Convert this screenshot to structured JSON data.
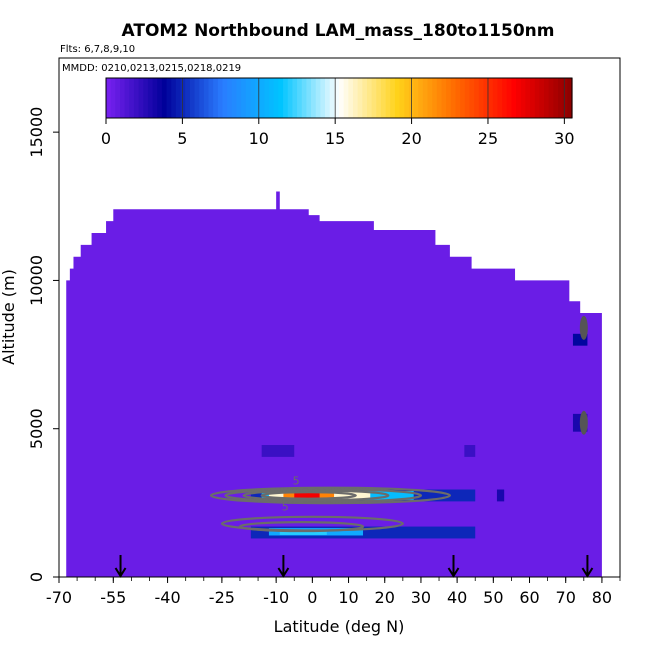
{
  "chart_data": {
    "type": "heatmap",
    "title": "ATOM2 Northbound LAM_mass_180to1150nm",
    "flights_note": "Flts: 6,7,8,9,10",
    "dates_note": "MMDD: 0210,0213,0215,0218,0219",
    "xlabel": "Latitude (deg N)",
    "ylabel": "Altitude (m)",
    "xlim": [
      -70,
      85
    ],
    "ylim": [
      0,
      17500
    ],
    "xticks": [
      -70,
      -55,
      -40,
      -25,
      -10,
      0,
      10,
      20,
      30,
      40,
      50,
      60,
      70,
      80
    ],
    "yticks": [
      0,
      5000,
      10000,
      15000
    ],
    "colorbar": {
      "min": 0,
      "max": 30.5,
      "ticks": [
        0,
        5,
        10,
        15,
        20,
        25,
        30
      ],
      "stops": [
        "#7a21f2",
        "#00009a",
        "#2a7cff",
        "#00c4ff",
        "#ffffff",
        "#ffd21a",
        "#ff6a00",
        "#ff0000",
        "#8a0000"
      ]
    },
    "background_value": 0.5,
    "coverage_envelope": {
      "lat_edges": [
        -68,
        -67,
        -66,
        -64,
        -61,
        -57,
        -55,
        -53,
        -10,
        -9,
        -8,
        -7,
        -1,
        2,
        17,
        34,
        38,
        44,
        56,
        71,
        74,
        80
      ],
      "top_altitude": [
        10000,
        10400,
        10800,
        11200,
        11600,
        12000,
        12400,
        12400,
        13000,
        12400,
        12400,
        12400,
        12200,
        12000,
        11700,
        11200,
        10800,
        10400,
        10000,
        9300,
        8900
      ]
    },
    "cells": [
      {
        "lat": [
          -17,
          45
        ],
        "alt": [
          2550,
          2950
        ],
        "value": 5
      },
      {
        "lat": [
          -17,
          45
        ],
        "alt": [
          1300,
          1700
        ],
        "value": 5
      },
      {
        "lat": [
          -14,
          28
        ],
        "alt": [
          2600,
          2900
        ],
        "value": 11
      },
      {
        "lat": [
          -12,
          16
        ],
        "alt": [
          2620,
          2880
        ],
        "value": 16
      },
      {
        "lat": [
          -8,
          6
        ],
        "alt": [
          2640,
          2860
        ],
        "value": 22
      },
      {
        "lat": [
          -5,
          2
        ],
        "alt": [
          2660,
          2840
        ],
        "value": 27
      },
      {
        "lat": [
          -12,
          14
        ],
        "alt": [
          1400,
          1650
        ],
        "value": 10
      },
      {
        "lat": [
          -9,
          4
        ],
        "alt": [
          1420,
          1600
        ],
        "value": 12
      },
      {
        "lat": [
          -14,
          -5
        ],
        "alt": [
          4050,
          4450
        ],
        "value": 2
      },
      {
        "lat": [
          42,
          45
        ],
        "alt": [
          4050,
          4450
        ],
        "value": 2
      },
      {
        "lat": [
          51,
          53
        ],
        "alt": [
          2550,
          2950
        ],
        "value": 3
      },
      {
        "lat": [
          72,
          76
        ],
        "alt": [
          7800,
          8200
        ],
        "value": 4
      },
      {
        "lat": [
          72,
          76
        ],
        "alt": [
          4900,
          5500
        ],
        "value": 3
      }
    ],
    "contours": [
      {
        "cx": 5,
        "cy": 2750,
        "rx": 33,
        "ry": 260
      },
      {
        "cx": 3,
        "cy": 2750,
        "rx": 27,
        "ry": 210
      },
      {
        "cx": 1,
        "cy": 2750,
        "rx": 20,
        "ry": 160
      },
      {
        "cx": -1,
        "cy": 2750,
        "rx": 13,
        "ry": 110
      },
      {
        "cx": 0,
        "cy": 1800,
        "rx": 25,
        "ry": 230
      },
      {
        "cx": -3,
        "cy": 1700,
        "rx": 17,
        "ry": 150
      }
    ],
    "contour_labels": [
      {
        "lat": -7.5,
        "alt": 2250,
        "text": "5"
      },
      {
        "lat": -4.5,
        "alt": 3120,
        "text": "5"
      }
    ],
    "arrow_latitudes": [
      -53,
      -8,
      39,
      76
    ]
  }
}
